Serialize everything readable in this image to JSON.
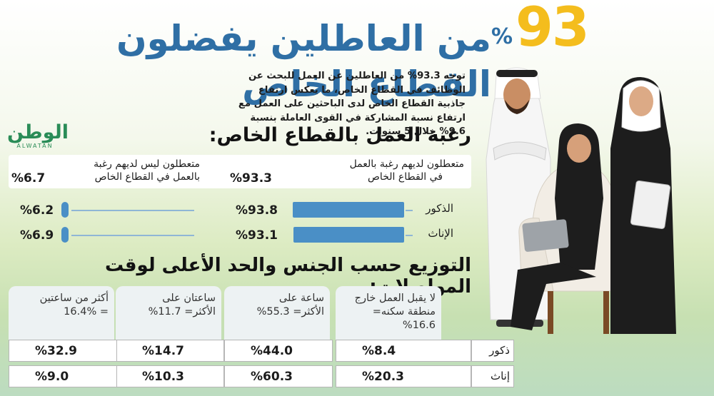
{
  "headline": {
    "number": "93",
    "percent": "%",
    "text": "من العاطلين يفضلون القطاع الخاص"
  },
  "intro": "توجه 93.3% من العاطلين عن العمل للبحث عن الوظائف في القطاع الخاص، ما يعكس ارتفاع جاذبية القطاع الخاص لدى الباحثين على العمل مع ارتفاع نسبة المشاركة في القوى العاملة بنسبة 9.6% خلال 5 سنوات.",
  "logo": {
    "arabic": "الوطن",
    "latin": "ALWATAN"
  },
  "section1": {
    "title": "رغبة العمل بالقطاع الخاص:",
    "willing": {
      "label_line1": "متعطلون لديهم رغبة بالعمل",
      "label_line2": "في القطاع الخاص",
      "value": "93.3",
      "pct": "%"
    },
    "not_willing": {
      "label_line1": "متعطلون ليس لديهم رغبة",
      "label_line2": "بالعمل في القطاع الخاص",
      "value": "6.7",
      "pct": "%"
    },
    "rows": [
      {
        "label": "الذكور",
        "willing": 93.8,
        "willing_text": "93.8",
        "not_willing": 6.2,
        "not_willing_text": "6.2",
        "pct": "%"
      },
      {
        "label": "الإناث",
        "willing": 93.1,
        "willing_text": "93.1",
        "not_willing": 6.9,
        "not_willing_text": "6.9",
        "pct": "%"
      }
    ]
  },
  "section2": {
    "title": "التوزيع حسب الجنس والحد الأعلى لوقت المواصلات:",
    "columns": [
      {
        "line1": "لا يقبل العمل خارج",
        "line2": "منطقة سكنه= 16.6%"
      },
      {
        "line1": "ساعة على",
        "line2": "الأكثر= 55.3%"
      },
      {
        "line1": "ساعتان على",
        "line2": "الأكثر= 11.7%"
      },
      {
        "line1": "أكثر من ساعتين",
        "line2": "= 16.4%"
      }
    ],
    "rows": [
      {
        "label": "ذكور",
        "values": [
          "8.4",
          "44.0",
          "14.7",
          "32.9"
        ]
      },
      {
        "label": "إناث",
        "values": [
          "20.3",
          "60.3",
          "10.3",
          "9.0"
        ]
      }
    ],
    "pct": "%"
  },
  "colors": {
    "blue": "#2f6fa5",
    "bar": "#4a8fc6",
    "yellow": "#f4bd1d",
    "logo_green": "#2a8c57"
  }
}
